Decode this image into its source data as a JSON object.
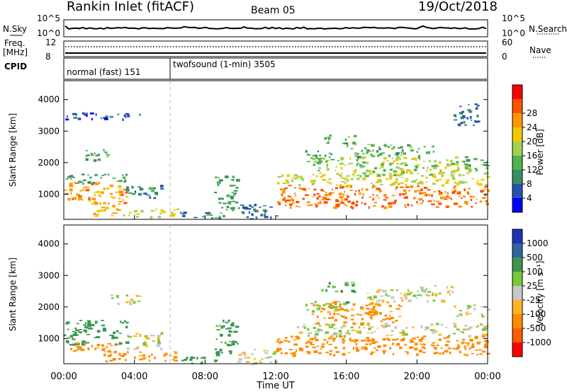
{
  "header": {
    "radar": "Rankin Inlet (fitACF)",
    "beam": "Beam 05",
    "date": "19/Oct/2018"
  },
  "noise_panel": {
    "left_label": "N.Sky",
    "left_ticks": [
      "10^5",
      "10^0"
    ],
    "right_ticks": [
      "10^5",
      "10^0"
    ],
    "right_label": "N.Search"
  },
  "freq_panel": {
    "left_label_top": "Freq.",
    "left_label_bottom": "[MHz]",
    "left_ticks": [
      "12",
      "8"
    ],
    "right_ticks": [
      "60",
      "0"
    ],
    "right_label": "Nave"
  },
  "cpid_panel": {
    "label": "CPID",
    "modes": [
      {
        "name": "normal (fast) 151",
        "start_hour": 0,
        "end_hour": 6
      },
      {
        "name": "twofsound (1-min) 3505",
        "start_hour": 6,
        "end_hour": 24
      }
    ]
  },
  "x_axis": {
    "label": "Time UT",
    "ticks": [
      "00:00",
      "04:00",
      "08:00",
      "12:00",
      "16:00",
      "20:00",
      "00:00"
    ]
  },
  "colors": {
    "power_scale": [
      "#0000ff",
      "#2850b4",
      "#3c8c64",
      "#50b450",
      "#a0d250",
      "#f0c800",
      "#ff9600",
      "#ff5000",
      "#ff0000"
    ],
    "velocity_scale": [
      "#ff0000",
      "#ff5a00",
      "#ff8c00",
      "#ffb428",
      "#c8c8c8",
      "#78c83c",
      "#3c9650",
      "#3264a0",
      "#1e32b4"
    ]
  },
  "chart_data": [
    {
      "type": "heatmap",
      "panel": "power",
      "xlabel": "Time UT",
      "ylabel": "Slant Range [km]",
      "xlim": [
        0,
        24
      ],
      "ylim": [
        200,
        4600
      ],
      "yticks": [
        1000,
        2000,
        3000,
        4000
      ],
      "colorbar": {
        "label": "Power [dB]",
        "range": [
          0,
          32
        ],
        "ticks": [
          "4",
          "8",
          "12",
          "16",
          "20",
          "24",
          "28"
        ]
      },
      "cells": [
        {
          "t0": 0,
          "t1": 3.5,
          "r0": 700,
          "r1": 1400,
          "value": 26
        },
        {
          "t0": 0,
          "t1": 3.5,
          "r0": 1350,
          "r1": 1650,
          "value": 12
        },
        {
          "t0": 3.5,
          "t1": 5.5,
          "r0": 900,
          "r1": 1300,
          "value": 10
        },
        {
          "t0": 1.5,
          "t1": 3.2,
          "r0": 300,
          "r1": 800,
          "value": 24
        },
        {
          "t0": 3.2,
          "t1": 6.5,
          "r0": 300,
          "r1": 550,
          "value": 20
        },
        {
          "t0": 6.5,
          "t1": 9,
          "r0": 200,
          "r1": 450,
          "value": 10
        },
        {
          "t0": 8.5,
          "t1": 9.8,
          "r0": 500,
          "r1": 1600,
          "value": 12
        },
        {
          "t0": 9.8,
          "t1": 12,
          "r0": 200,
          "r1": 700,
          "value": 8
        },
        {
          "t0": 1,
          "t1": 2.5,
          "r0": 2100,
          "r1": 2450,
          "value": 14
        },
        {
          "t0": 0,
          "t1": 4.5,
          "r0": 3400,
          "r1": 3600,
          "value": 6
        },
        {
          "t0": 12,
          "t1": 24,
          "r0": 600,
          "r1": 1300,
          "value": 28
        },
        {
          "t0": 12,
          "t1": 24,
          "r0": 1300,
          "r1": 1700,
          "value": 20
        },
        {
          "t0": 14,
          "t1": 23,
          "r0": 1600,
          "r1": 2200,
          "value": 18
        },
        {
          "t0": 16,
          "t1": 21,
          "r0": 2200,
          "r1": 2600,
          "value": 14
        },
        {
          "t0": 13.5,
          "t1": 15.5,
          "r0": 2000,
          "r1": 2400,
          "value": 12
        },
        {
          "t0": 14.5,
          "t1": 16.5,
          "r0": 2600,
          "r1": 2900,
          "value": 14
        },
        {
          "t0": 22,
          "t1": 23.5,
          "r0": 3200,
          "r1": 3900,
          "value": 8
        },
        {
          "t0": 22.5,
          "t1": 24,
          "r0": 1800,
          "r1": 2200,
          "value": 14
        }
      ]
    },
    {
      "type": "heatmap",
      "panel": "velocity",
      "xlabel": "Time UT",
      "ylabel": "Slant Range [km]",
      "xlim": [
        0,
        24
      ],
      "ylim": [
        200,
        4600
      ],
      "yticks": [
        1000,
        2000,
        3000,
        4000
      ],
      "colorbar": {
        "label": "Velocity [m s⁻¹]",
        "ticks": [
          "1000",
          "500",
          "100",
          "25",
          "-25",
          "-100",
          "-500",
          "-1000"
        ]
      },
      "cells": [
        {
          "t0": 0,
          "t1": 3.5,
          "r0": 800,
          "r1": 1600,
          "value": 300
        },
        {
          "t0": 0,
          "t1": 3.5,
          "r0": 600,
          "r1": 900,
          "value": -300
        },
        {
          "t0": 3.5,
          "t1": 5.5,
          "r0": 700,
          "r1": 1200,
          "value": 0
        },
        {
          "t0": 2,
          "t1": 6.5,
          "r0": 300,
          "r1": 600,
          "value": -150
        },
        {
          "t0": 6.5,
          "t1": 9,
          "r0": 200,
          "r1": 450,
          "value": 200
        },
        {
          "t0": 8.5,
          "t1": 9.8,
          "r0": 500,
          "r1": 1600,
          "value": 150
        },
        {
          "t0": 9.8,
          "t1": 12,
          "r0": 200,
          "r1": 700,
          "value": 0
        },
        {
          "t0": 2.5,
          "t1": 4.5,
          "r0": 2100,
          "r1": 2400,
          "value": 0
        },
        {
          "t0": 12,
          "t1": 24,
          "r0": 500,
          "r1": 1100,
          "value": -300
        },
        {
          "t0": 13,
          "t1": 24,
          "r0": 1100,
          "r1": 1500,
          "value": 0
        },
        {
          "t0": 14,
          "t1": 19,
          "r0": 1500,
          "r1": 2200,
          "value": -150
        },
        {
          "t0": 13.5,
          "t1": 16,
          "r0": 1900,
          "r1": 2200,
          "value": 60
        },
        {
          "t0": 17,
          "t1": 22,
          "r0": 2200,
          "r1": 2600,
          "value": 0
        },
        {
          "t0": 20,
          "t1": 22,
          "r0": 2500,
          "r1": 2700,
          "value": 0
        },
        {
          "t0": 22,
          "t1": 24,
          "r0": 1700,
          "r1": 2100,
          "value": 0
        },
        {
          "t0": 14.5,
          "t1": 16.5,
          "r0": 2500,
          "r1": 2800,
          "value": 100
        }
      ]
    }
  ]
}
